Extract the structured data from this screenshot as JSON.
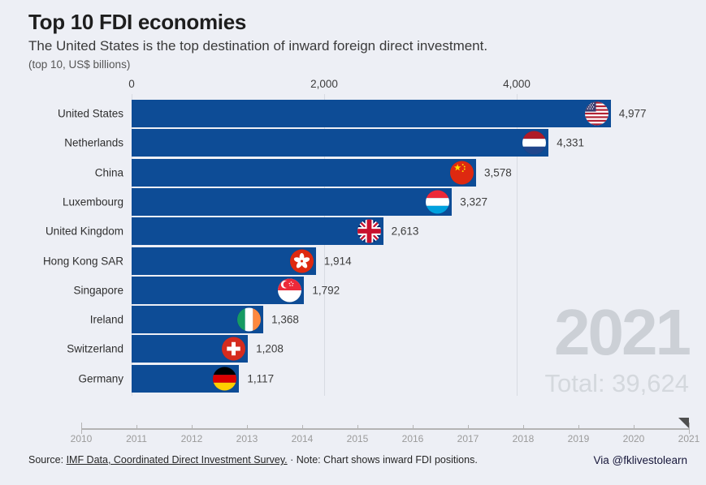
{
  "chart_data": {
    "type": "bar",
    "orientation": "horizontal",
    "title": "Top 10 FDI economies",
    "subtitle": "The United States is the top destination of inward foreign direct investment.",
    "units_caption": "(top 10, US$ billions)",
    "categories": [
      "United States",
      "Netherlands",
      "China",
      "Luxembourg",
      "United Kingdom",
      "Hong Kong SAR",
      "Singapore",
      "Ireland",
      "Switzerland",
      "Germany"
    ],
    "values": [
      4977,
      4331,
      3578,
      3327,
      2613,
      1914,
      1792,
      1368,
      1208,
      1117
    ],
    "value_labels": [
      "4,977",
      "4,331",
      "3,578",
      "3,327",
      "2,613",
      "1,914",
      "1,792",
      "1,368",
      "1,208",
      "1,117"
    ],
    "xlabel": "US$ billions",
    "ylabel": "",
    "xlim": [
      0,
      5822
    ],
    "x_ticks": [
      {
        "value": 0,
        "label": "0"
      },
      {
        "value": 2000,
        "label": "2,000"
      },
      {
        "value": 4000,
        "label": "4,000"
      }
    ],
    "grid": "vertical",
    "legend": "none",
    "bar_color": "#0d4c96",
    "year_shown": "2021",
    "total": 39624
  },
  "header": {
    "title": "Top 10 FDI economies",
    "subtitle": "The United States is the top destination of inward foreign direct investment.",
    "caption": "(top 10, US$ billions)"
  },
  "rows": [
    {
      "label": "United States",
      "value": 4977,
      "value_label": "4,977",
      "flag": "us"
    },
    {
      "label": "Netherlands",
      "value": 4331,
      "value_label": "4,331",
      "flag": "nl"
    },
    {
      "label": "China",
      "value": 3578,
      "value_label": "3,578",
      "flag": "cn"
    },
    {
      "label": "Luxembourg",
      "value": 3327,
      "value_label": "3,327",
      "flag": "lu"
    },
    {
      "label": "United Kingdom",
      "value": 2613,
      "value_label": "2,613",
      "flag": "gb"
    },
    {
      "label": "Hong Kong SAR",
      "value": 1914,
      "value_label": "1,914",
      "flag": "hk"
    },
    {
      "label": "Singapore",
      "value": 1792,
      "value_label": "1,792",
      "flag": "sg"
    },
    {
      "label": "Ireland",
      "value": 1368,
      "value_label": "1,368",
      "flag": "ie"
    },
    {
      "label": "Switzerland",
      "value": 1208,
      "value_label": "1,208",
      "flag": "ch"
    },
    {
      "label": "Germany",
      "value": 1117,
      "value_label": "1,117",
      "flag": "de"
    }
  ],
  "overlay": {
    "year": "2021",
    "total": "Total: 39,624"
  },
  "timeline": {
    "years": [
      "2010",
      "2011",
      "2012",
      "2013",
      "2014",
      "2015",
      "2016",
      "2017",
      "2018",
      "2019",
      "2020",
      "2021"
    ],
    "current": "2021"
  },
  "footer": {
    "source_prefix": "Source: ",
    "source_link": "IMF Data, Coordinated Direct Investment Survey.",
    "separator": " · ",
    "note": "Note: Chart shows inward FDI positions.",
    "credit": "Via @fklivestolearn"
  },
  "colors": {
    "background": "#edeff5",
    "bar": "#0d4c96",
    "gridline": "#d8dbe2",
    "title_text": "#1e1e1e",
    "overlay_year": "#ccd0d6",
    "overlay_total": "#d4d8dd",
    "timeline": "#b4b4b4",
    "timeline_labels": "#9b9b9b",
    "credit_text": "#17173a"
  }
}
